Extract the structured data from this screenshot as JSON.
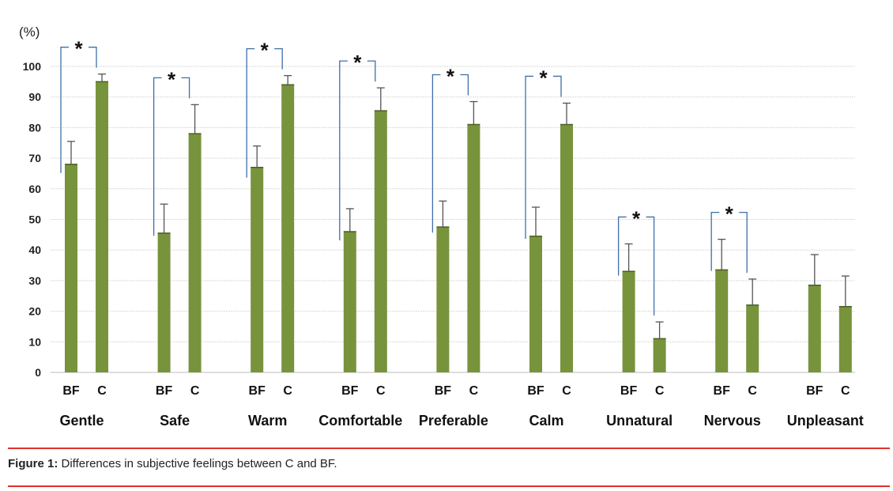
{
  "chart_data": {
    "type": "bar",
    "ylabel": "(%)",
    "ylim": [
      0,
      100
    ],
    "yticks": [
      0,
      10,
      20,
      30,
      40,
      50,
      60,
      70,
      80,
      90,
      100
    ],
    "grid": true,
    "groups": [
      "Gentle",
      "Safe",
      "Warm",
      "Comfortable",
      "Preferable",
      "Calm",
      "Unnatural",
      "Nervous",
      "Unpleasant"
    ],
    "bars": [
      "BF",
      "C"
    ],
    "values": [
      [
        68,
        95
      ],
      [
        45.5,
        78
      ],
      [
        67,
        94
      ],
      [
        46,
        85.5
      ],
      [
        47.5,
        81
      ],
      [
        44.5,
        81
      ],
      [
        33,
        11
      ],
      [
        33.5,
        22
      ],
      [
        28.5,
        21.5
      ]
    ],
    "errors": [
      [
        7.5,
        2.5
      ],
      [
        9.5,
        9.5
      ],
      [
        7,
        3
      ],
      [
        7.5,
        7.5
      ],
      [
        8.5,
        7.5
      ],
      [
        9.5,
        7
      ],
      [
        9,
        5.5
      ],
      [
        10,
        8.5
      ],
      [
        10,
        10
      ]
    ],
    "significance": [
      true,
      true,
      true,
      true,
      true,
      true,
      true,
      true,
      false
    ],
    "significance_mark": "*",
    "bar_color": "#77933c",
    "bracket_color": "#3f6fa8"
  },
  "caption": {
    "label": "Figure 1:",
    "text": " Differences in subjective feelings between C and BF."
  }
}
